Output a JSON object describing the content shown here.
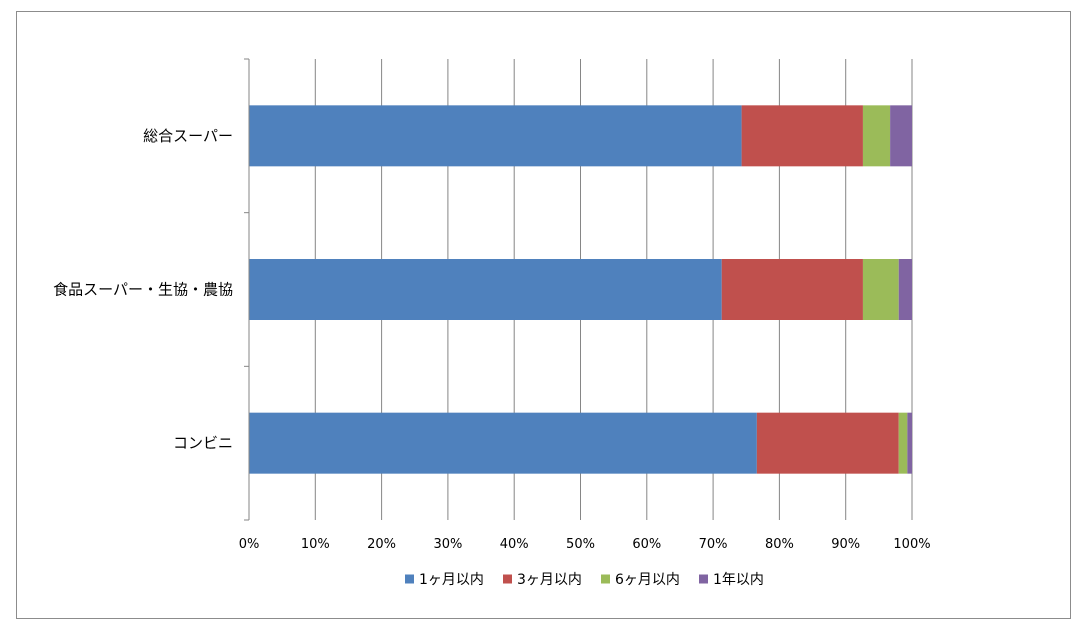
{
  "chart_data": {
    "type": "bar",
    "orientation": "horizontal",
    "stacked": "percent",
    "title": "",
    "xlabel": "",
    "ylabel": "",
    "categories": [
      "総合スーパー",
      "食品スーパー・生協・農協",
      "コンビニ"
    ],
    "series": [
      {
        "name": "1ヶ月以内",
        "color": "#4f81bd",
        "values": [
          74.3,
          71.3,
          76.6
        ]
      },
      {
        "name": "3ヶ月以内",
        "color": "#c0504d",
        "values": [
          18.3,
          21.3,
          21.4
        ]
      },
      {
        "name": "6ヶ月以内",
        "color": "#9bbb59",
        "values": [
          4.1,
          5.4,
          1.3
        ]
      },
      {
        "name": "1年以内",
        "color": "#8064a2",
        "values": [
          3.3,
          2.0,
          0.7
        ]
      }
    ],
    "xlim": [
      0,
      100
    ],
    "x_ticks": [
      "0%",
      "10%",
      "20%",
      "30%",
      "40%",
      "50%",
      "60%",
      "70%",
      "80%",
      "90%",
      "100%"
    ],
    "grid": true,
    "legend_position": "bottom"
  }
}
